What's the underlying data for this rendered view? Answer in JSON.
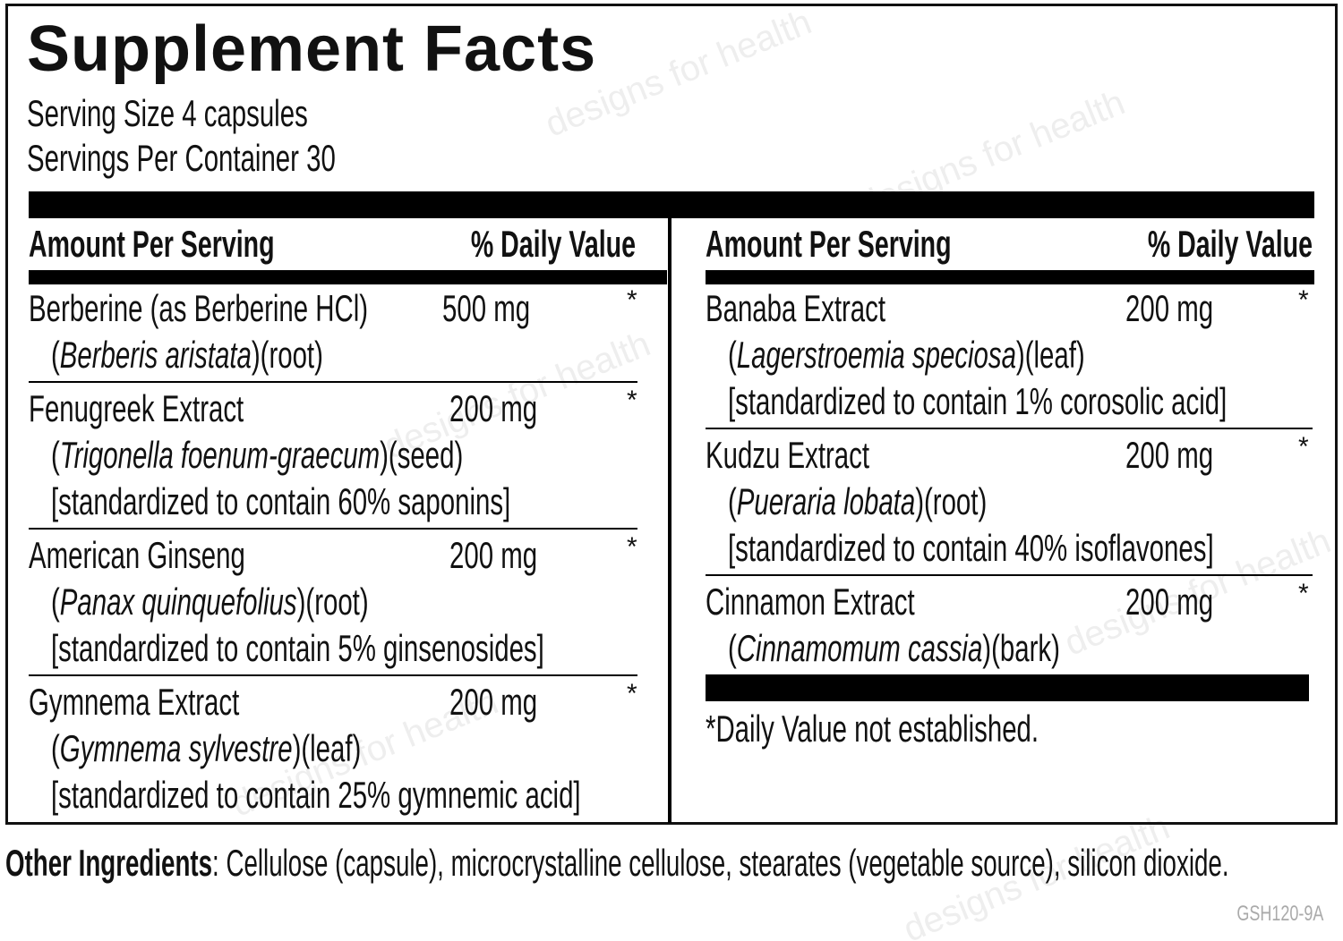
{
  "title": "Supplement Facts",
  "serving_size": "Serving Size 4 capsules",
  "servings_per_container": "Servings Per Container 30",
  "watermark": "designs for health",
  "columns": [
    {
      "header": {
        "amount": "Amount Per Serving",
        "daily_value": "% Daily Value"
      },
      "rows": [
        {
          "name": "Berberine (as Berberine HCl)",
          "amount": "500 mg",
          "daily_value": "*",
          "source": [
            "(",
            "Berberis aristata",
            ")(root)"
          ]
        },
        {
          "name": "Fenugreek Extract",
          "amount": "200 mg",
          "daily_value": "*",
          "source": [
            "(",
            "Trigonella foenum-graecum",
            ")(seed)"
          ],
          "standard": "[standardized to contain 60% saponins]"
        },
        {
          "name": "American Ginseng",
          "amount": "200 mg",
          "daily_value": "*",
          "source": [
            "(",
            "Panax quinquefolius",
            ")(root)"
          ],
          "standard": "[standardized to contain 5% ginsenosides]"
        },
        {
          "name": "Gymnema Extract",
          "amount": "200 mg",
          "daily_value": "*",
          "source": [
            "(",
            "Gymnema sylvestre",
            ")(leaf)"
          ],
          "standard": "[standardized to contain 25% gymnemic acid]"
        }
      ]
    },
    {
      "header": {
        "amount": "Amount Per Serving",
        "daily_value": "% Daily Value"
      },
      "rows": [
        {
          "name": "Banaba Extract",
          "amount": "200 mg",
          "daily_value": "*",
          "source": [
            "(",
            "Lagerstroemia speciosa",
            ")(leaf)"
          ],
          "standard": "[standardized to contain 1% corosolic acid]"
        },
        {
          "name": "Kudzu Extract",
          "amount": "200 mg",
          "daily_value": "*",
          "source": [
            "(",
            "Pueraria lobata",
            ")(root)"
          ],
          "standard": "[standardized to contain 40% isoflavones]"
        },
        {
          "name": "Cinnamon Extract",
          "amount": "200 mg",
          "daily_value": "*",
          "source": [
            "(",
            "Cinnamomum cassia",
            ")(bark)"
          ]
        }
      ]
    }
  ],
  "footnote": "*Daily Value not established.",
  "other_ingredients": {
    "label": "Other Ingredients",
    "text": ": Cellulose (capsule), microcrystalline cellulose, stearates (vegetable source), silicon dioxide."
  },
  "code": "GSH120-9A"
}
